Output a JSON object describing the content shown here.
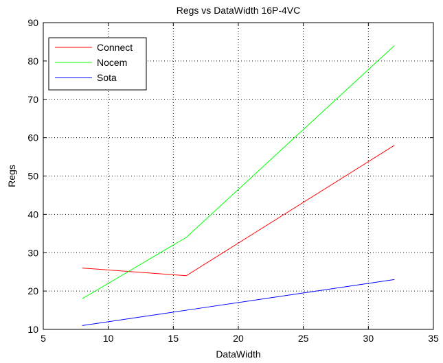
{
  "chart_data": {
    "type": "line",
    "title": "Regs vs DataWidth 16P-4VC",
    "xlabel": "DataWidth",
    "ylabel": "Regs",
    "xlim": [
      5,
      35
    ],
    "ylim": [
      10,
      90
    ],
    "xticks": [
      5,
      10,
      15,
      20,
      25,
      30,
      35
    ],
    "yticks": [
      10,
      20,
      30,
      40,
      50,
      60,
      70,
      80,
      90
    ],
    "grid": true,
    "legend_position": "top-left",
    "x": [
      8,
      16,
      32
    ],
    "series": [
      {
        "name": "Connect",
        "color": "#ff0000",
        "values": [
          26,
          24,
          58
        ]
      },
      {
        "name": "Nocem",
        "color": "#00ff00",
        "values": [
          18,
          34,
          84
        ]
      },
      {
        "name": "Sota",
        "color": "#0000ff",
        "values": [
          11,
          15,
          23
        ]
      }
    ]
  }
}
